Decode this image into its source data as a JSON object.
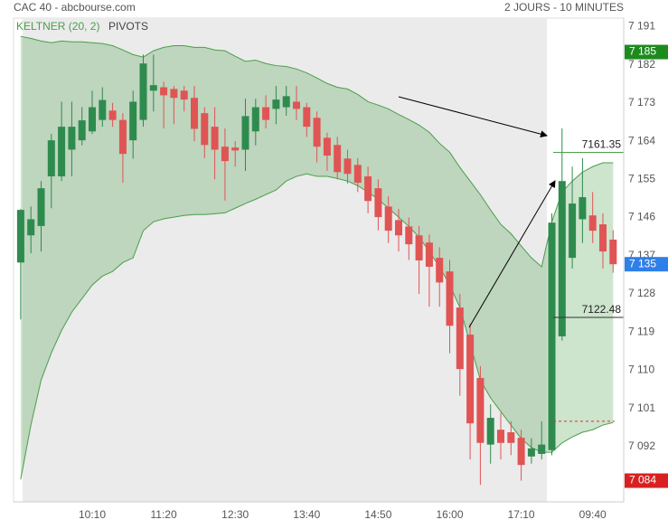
{
  "chart_data": {
    "type": "candlestick",
    "title": "CAC 40 - abcbourse.com",
    "subtitle": "2 JOURS - 10 MINUTES",
    "legend": [
      "KELTNER (20, 2)",
      "PIVOTS"
    ],
    "categories": [
      null,
      null,
      null,
      null,
      null,
      null,
      null,
      "10:10",
      null,
      null,
      null,
      null,
      null,
      null,
      "11:20",
      null,
      null,
      null,
      null,
      null,
      null,
      "12:30",
      null,
      null,
      null,
      null,
      null,
      null,
      "13:40",
      null,
      null,
      null,
      null,
      null,
      null,
      "14:50",
      null,
      null,
      null,
      null,
      null,
      null,
      "16:00",
      null,
      null,
      null,
      null,
      null,
      null,
      "17:10",
      null,
      null,
      null,
      null,
      null,
      null,
      "09:40",
      null,
      null
    ],
    "open": [
      7135.4,
      7141.8,
      7144,
      7155.7,
      7155.7,
      7162,
      7164.2,
      7166.3,
      7169,
      7171.2,
      7169,
      7164.2,
      7169,
      7175.9,
      7176.7,
      7176.3,
      7175.9,
      7174.2,
      7170.6,
      7167.4,
      7162.7,
      7162.5,
      7162,
      7166.3,
      7172,
      7171.6,
      7172,
      7173.3,
      7172,
      7169.5,
      7164.8,
      7163.1,
      7159.9,
      7158.4,
      7155.7,
      7152.9,
      7148.6,
      7145.4,
      7143.9,
      7141.8,
      7140.1,
      7136.5,
      7133.3,
      7124.8,
      7118.4,
      7108.2,
      7092.5,
      7096,
      7095.4,
      7094.1,
      7089.7,
      7090.3,
      7091.2,
      7118,
      7136.5,
      7145.6,
      7146.5,
      7144.4,
      7140.8
    ],
    "high": [
      7148,
      7148.6,
      7154.6,
      7165.7,
      7173.3,
      7173.3,
      7172,
      7175.9,
      7176.7,
      7173,
      7170.6,
      7175.9,
      7184.4,
      7184.4,
      7178,
      7177,
      7177,
      7177,
      7172,
      7172,
      7167,
      7164,
      7174,
      7174,
      7174.8,
      7177,
      7177,
      7177,
      7173,
      7171,
      7166,
      7165,
      7162,
      7160,
      7158,
      7155,
      7151,
      7148,
      7146,
      7144,
      7142,
      7139,
      7136,
      7128,
      7121,
      7111,
      7102,
      7100,
      7098,
      7096,
      7094,
      7098,
      7147,
      7167,
      7158,
      7160,
      7152,
      7147,
      7143
    ],
    "low": [
      7122,
      7137.6,
      7138,
      7148.2,
      7154.6,
      7155.7,
      7163,
      7165.7,
      7167.4,
      7167.4,
      7154.2,
      7159.9,
      7167.4,
      7171,
      7167,
      7168,
      7171,
      7164,
      7160,
      7155,
      7150,
      7158,
      7157,
      7163,
      7167,
      7168,
      7170,
      7169,
      7165,
      7159,
      7157,
      7155,
      7154,
      7152,
      7147,
      7143,
      7140,
      7138,
      7136,
      7128,
      7125,
      7125,
      7114,
      7104,
      7089,
      7083,
      7088,
      7089,
      7090,
      7084,
      7088,
      7089,
      7090,
      7117,
      7134,
      7140,
      7140,
      7134,
      7133
    ],
    "close": [
      7147.8,
      7145.6,
      7152.9,
      7164.2,
      7167.4,
      7167.4,
      7168.9,
      7172,
      7173.7,
      7169,
      7161,
      7173.3,
      7182.3,
      7177.2,
      7174.8,
      7174.2,
      7173.8,
      7166.9,
      7163.1,
      7162,
      7159.3,
      7161.8,
      7169.9,
      7172,
      7169,
      7173.8,
      7174.6,
      7171.6,
      7167.4,
      7162.7,
      7160.6,
      7156.7,
      7156.3,
      7154.2,
      7149.9,
      7146.1,
      7142.9,
      7141.8,
      7139.7,
      7135.9,
      7134.4,
      7130.7,
      7120.5,
      7110.3,
      7097.5,
      7092.9,
      7098.8,
      7092.9,
      7092.9,
      7087.7,
      7091.6,
      7092.5,
      7144.8,
      7154.6,
      7149.3,
      7150.8,
      7142.9,
      7138,
      7135
    ],
    "up_color": "#2e8b4e",
    "down_color": "#e05454",
    "keltner": {
      "color": "#4a9e4a",
      "upper": [
        7188.7,
        7188.2,
        7187.6,
        7187.2,
        7187.6,
        7187.4,
        7187.4,
        7187.2,
        7187.0,
        7186.5,
        7185.5,
        7184.4,
        7183.8,
        7185.3,
        7186.1,
        7186.5,
        7186.5,
        7186.1,
        7186.1,
        7185.5,
        7185.3,
        7184.0,
        7182.8,
        7183.1,
        7182.3,
        7181.8,
        7181.6,
        7181.0,
        7180.1,
        7178.9,
        7177.6,
        7176.7,
        7176.3,
        7175.0,
        7173.3,
        7172.5,
        7171.6,
        7170.3,
        7169.1,
        7167.8,
        7166.1,
        7163.5,
        7161.4,
        7157.8,
        7154.6,
        7151.4,
        7147.8,
        7144.4,
        7142.2,
        7139.3,
        7136.5,
        7134.4,
        7145.0,
        7152.0,
        7154.6,
        7156.7,
        7158.0,
        7158.9,
        7158.9
      ],
      "lower": [
        7084.3,
        7097.1,
        7107.7,
        7114.1,
        7119.4,
        7123.7,
        7126.9,
        7130.1,
        7132.2,
        7133.3,
        7135.4,
        7136.5,
        7142.9,
        7145.0,
        7145.7,
        7146.1,
        7146.5,
        7146.7,
        7146.7,
        7146.9,
        7147.1,
        7148.2,
        7149.3,
        7150.3,
        7151.4,
        7152.5,
        7154.6,
        7155.7,
        7156.3,
        7155.7,
        7155.7,
        7155.2,
        7154.6,
        7153.5,
        7152.0,
        7150.3,
        7148.2,
        7146.1,
        7143.9,
        7141.4,
        7138.0,
        7134.4,
        7130.1,
        7124.8,
        7116.3,
        7107.7,
        7103.5,
        7100.3,
        7097.1,
        7093.9,
        7091.8,
        7090.7,
        7090.7,
        7092.9,
        7094.3,
        7095.4,
        7096.0,
        7097.1,
        7097.7
      ]
    },
    "pivots": [
      {
        "value": 7161.35,
        "color": "#4a9e4a"
      },
      {
        "value": 7122.48,
        "color": "#333333"
      },
      {
        "value": 7098,
        "color": "#d33333",
        "dashed": true
      }
    ],
    "price_tags": [
      {
        "value": 7185,
        "label": "7 185",
        "color": "#1e8a1e"
      },
      {
        "value": 7135,
        "label": "7 135",
        "color": "#2f7fe8"
      },
      {
        "value": 7084,
        "label": "7 084",
        "color": "#d92020"
      }
    ],
    "ylim": [
      7079,
      7193
    ],
    "yticks": [
      {
        "value": 7191,
        "label": "7 191"
      },
      {
        "value": 7182,
        "label": "7 182"
      },
      {
        "value": 7173,
        "label": "7 173"
      },
      {
        "value": 7164,
        "label": "7 164"
      },
      {
        "value": 7155,
        "label": "7 155"
      },
      {
        "value": 7146,
        "label": "7 146"
      },
      {
        "value": 7137,
        "label": "7 137"
      },
      {
        "value": 7128,
        "label": "7 128"
      },
      {
        "value": 7119,
        "label": "7 119"
      },
      {
        "value": 7110,
        "label": "7 110"
      },
      {
        "value": 7101,
        "label": "7 101"
      },
      {
        "value": 7092,
        "label": "7 092"
      }
    ]
  }
}
